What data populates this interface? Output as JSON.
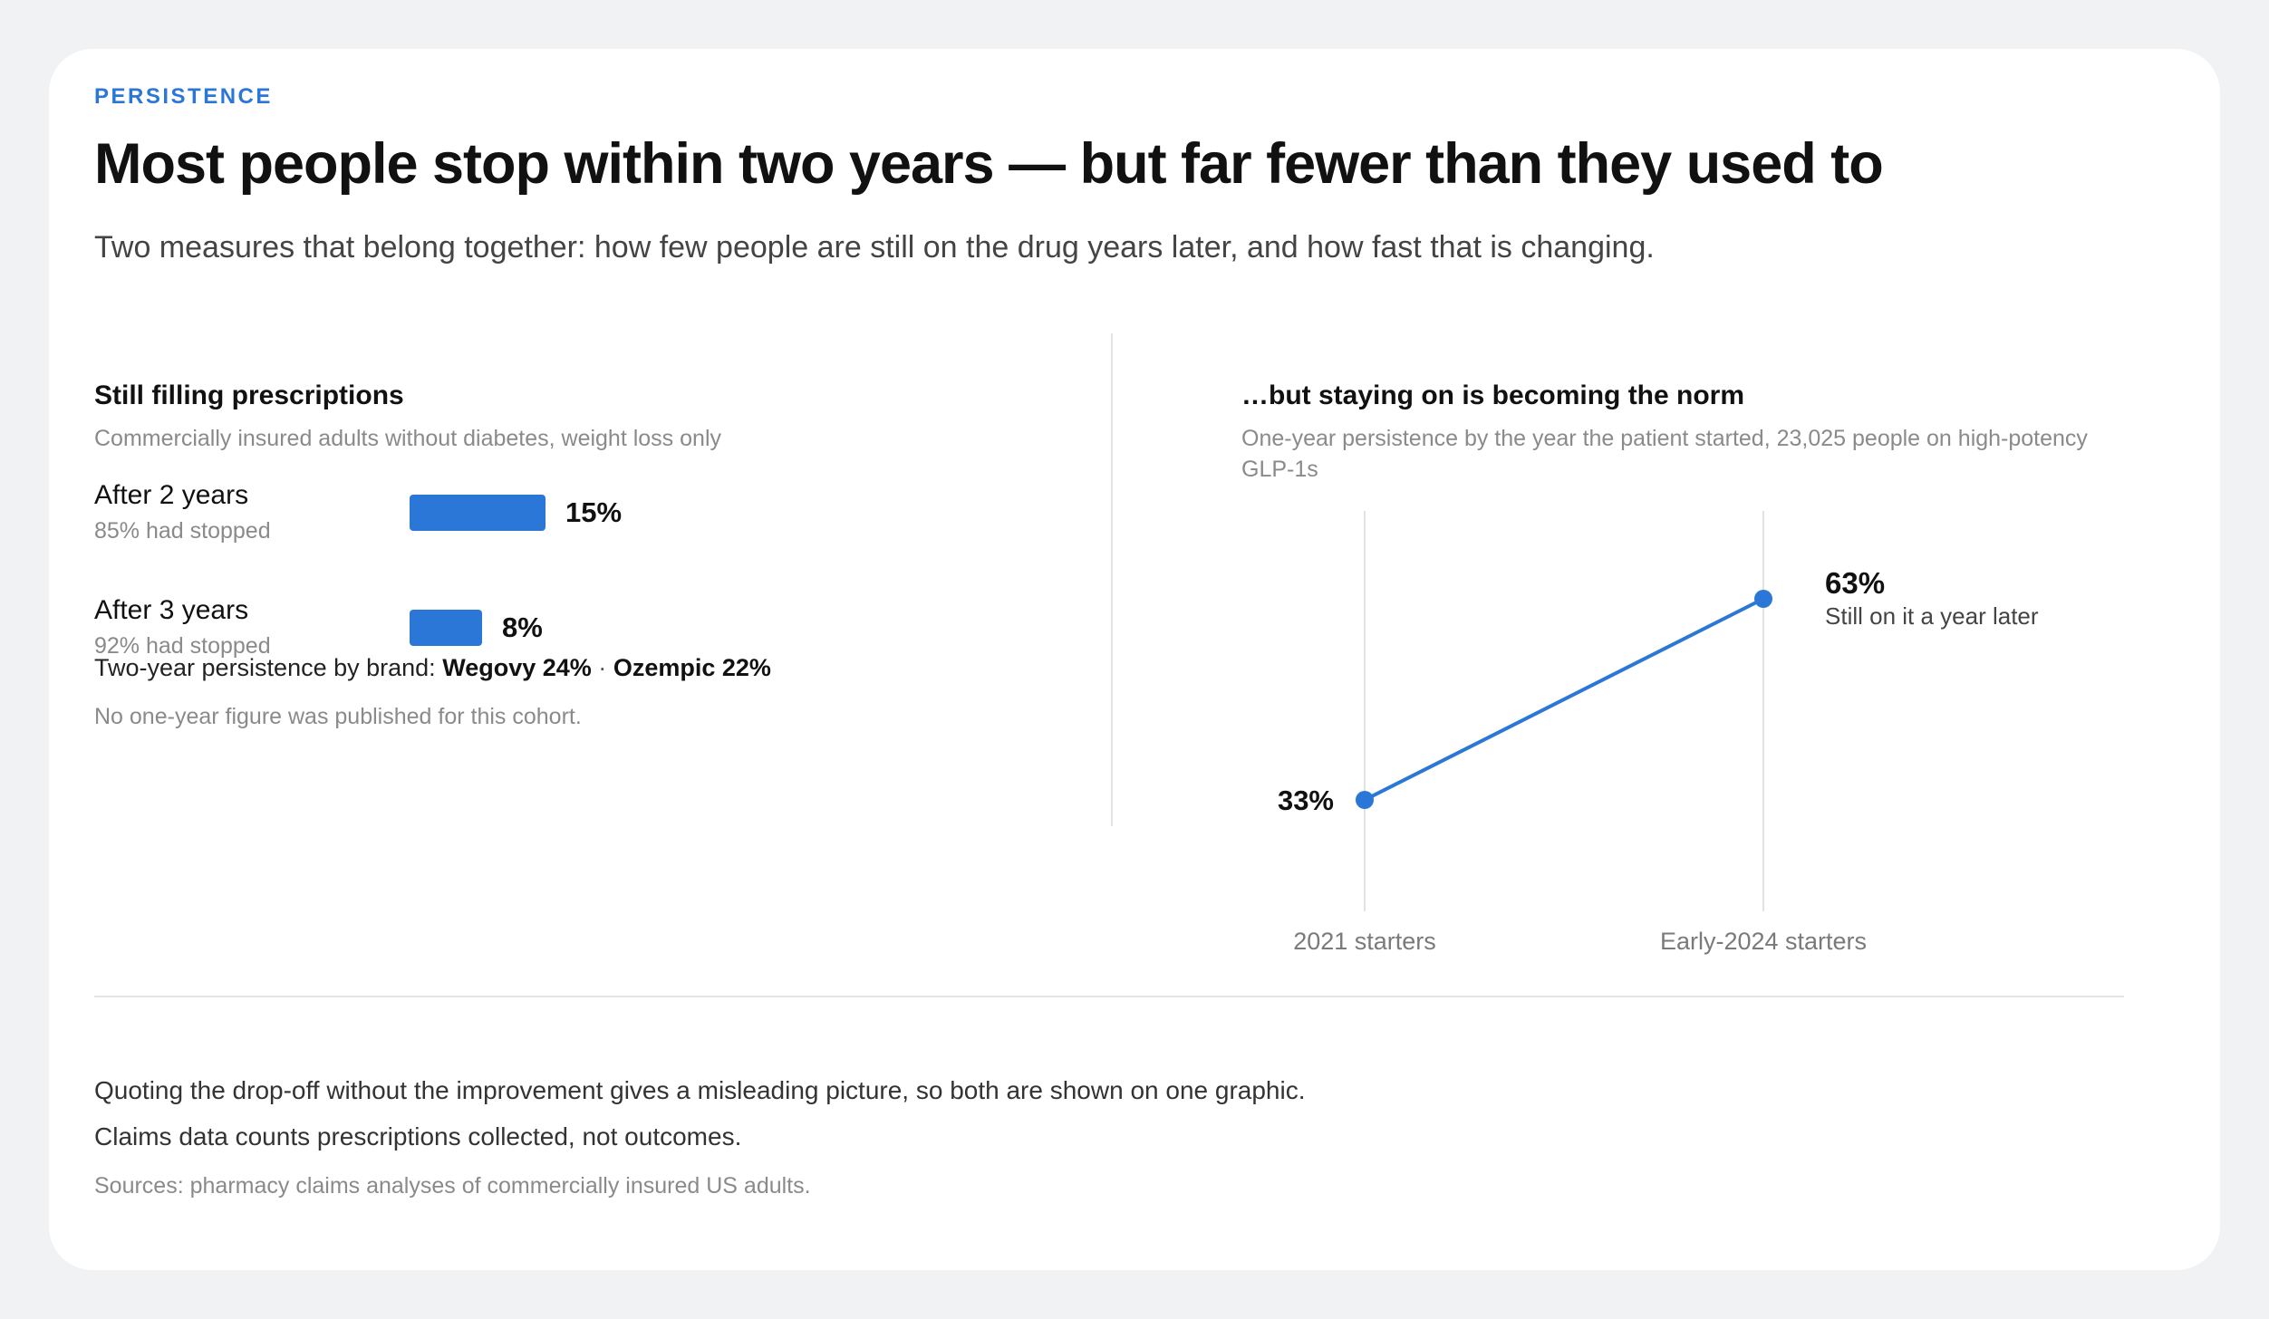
{
  "eyebrow": "PERSISTENCE",
  "title": "Most people stop within two years — but far fewer than they used to",
  "subtitle": "Two measures that belong together: how few people are still on the drug years later, and how fast that is changing.",
  "left": {
    "title": "Still filling prescriptions",
    "subtitle": "Commercially insured adults without diabetes, weight loss only",
    "rows": [
      {
        "label": "After 2 years",
        "note": "85% had stopped",
        "value_label": "15%"
      },
      {
        "label": "After 3 years",
        "note": "92% had stopped",
        "value_label": "8%"
      }
    ],
    "brand_prefix": "Two-year persistence by brand:",
    "brand_wegovy": "Wegovy 24%",
    "brand_sep": "·",
    "brand_ozempic": "Ozempic 22%",
    "footnote": "No one-year figure was published for this cohort."
  },
  "right": {
    "title": "…but staying on is becoming the norm",
    "subtitle": "One-year persistence by the year the patient started, 23,025 people on high-potency GLP-1s",
    "end_label": "63%",
    "end_caption": "Still on it a year later",
    "start_label": "33%"
  },
  "notes": [
    "Quoting the drop-off without the improvement gives a misleading picture, so both are shown on one graphic.",
    "Claims data counts prescriptions collected, not outcomes."
  ],
  "sources": "Sources: pharmacy claims analyses of commercially insured US adults.",
  "colors": {
    "accent": "#2b77d8",
    "background": "#f1f2f4",
    "card": "#ffffff",
    "muted": "#8a8a8a"
  },
  "chart_data": [
    {
      "type": "bar",
      "orientation": "horizontal",
      "title": "Still filling prescriptions",
      "subtitle": "Commercially insured adults without diabetes, weight loss only",
      "categories": [
        "After 2 years",
        "After 3 years"
      ],
      "values": [
        15,
        8
      ],
      "unit": "%",
      "xlim": [
        0,
        100
      ]
    },
    {
      "type": "line",
      "title": "…but staying on is becoming the norm",
      "subtitle": "One-year persistence by the year the patient started, 23,025 people on high-potency GLP-1s",
      "categories": [
        "2021 starters",
        "Early-2024 starters"
      ],
      "values": [
        33,
        63
      ],
      "unit": "%",
      "ylim": [
        0,
        100
      ],
      "grid": "vertical lines at categories",
      "data_labels": [
        "33%",
        "63%"
      ]
    }
  ]
}
